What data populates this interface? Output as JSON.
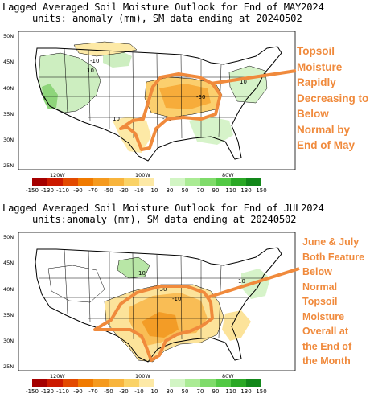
{
  "panels": [
    {
      "title": "Lagged Averaged Soil Moisture Outlook for End of MAY2024",
      "subtitle": "units: anomaly (mm), SM data ending at 20240502",
      "callout_lines": [
        "Topsoil",
        "Moisture",
        "Rapidly",
        "Decreasing to",
        "Below",
        "Normal by",
        "End of May"
      ],
      "contour_labels": [
        "-10",
        "10",
        "-30",
        "-10",
        "10",
        "10"
      ]
    },
    {
      "title": "Lagged Averaged Soil Moisture Outlook for End of JUL2024",
      "subtitle": "units:anomaly (mm), SM data ending at 20240502",
      "callout_lines": [
        "June & July",
        "Both Feature",
        "Below",
        "Normal",
        "Topsoil",
        "Moisture",
        "Overall at",
        "the End of",
        "the Month"
      ],
      "contour_labels": [
        "10",
        "-30",
        "-10",
        "10"
      ]
    }
  ],
  "lat_labels": [
    "50N",
    "45N",
    "40N",
    "35N",
    "30N",
    "25N"
  ],
  "lon_labels": [
    "120W",
    "100W",
    "80W"
  ],
  "legend": {
    "labels": [
      "-150",
      "-130",
      "-110",
      "-90",
      "-70",
      "-50",
      "-30",
      "-10",
      "10",
      "30",
      "50",
      "70",
      "90",
      "110",
      "130",
      "150"
    ],
    "colors": [
      "#a50000",
      "#cc1a00",
      "#e34a00",
      "#f07a00",
      "#f59a1e",
      "#f8b43c",
      "#fad266",
      "#fde9a6",
      "#ffffff",
      "#d2f5c4",
      "#aaeb94",
      "#7fdb6a",
      "#52c944",
      "#2aa825",
      "#12871a"
    ]
  },
  "colors": {
    "callout": "#f08a3c",
    "outline": "#f08a3c"
  }
}
